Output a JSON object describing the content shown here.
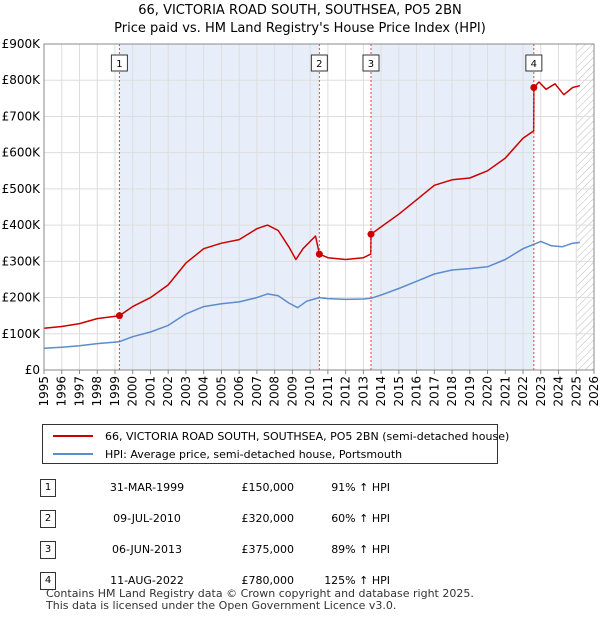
{
  "chart_data": {
    "type": "line",
    "title": "66, VICTORIA ROAD SOUTH, SOUTHSEA, PO5 2BN",
    "subtitle": "Price paid vs. HM Land Registry's House Price Index (HPI)",
    "xlim": [
      1995,
      2026
    ],
    "ylim": [
      0,
      900000
    ],
    "x_ticks": [
      "1995",
      "1996",
      "1997",
      "1998",
      "1999",
      "2000",
      "2001",
      "2002",
      "2003",
      "2004",
      "2005",
      "2006",
      "2007",
      "2008",
      "2009",
      "2010",
      "2011",
      "2012",
      "2013",
      "2014",
      "2015",
      "2016",
      "2017",
      "2018",
      "2019",
      "2020",
      "2021",
      "2022",
      "2023",
      "2024",
      "2025",
      "2026"
    ],
    "y_ticks": [
      {
        "value": 0,
        "label": "£0"
      },
      {
        "value": 100000,
        "label": "£100K"
      },
      {
        "value": 200000,
        "label": "£200K"
      },
      {
        "value": 300000,
        "label": "£300K"
      },
      {
        "value": 400000,
        "label": "£400K"
      },
      {
        "value": 500000,
        "label": "£500K"
      },
      {
        "value": 600000,
        "label": "£600K"
      },
      {
        "value": 700000,
        "label": "£700K"
      },
      {
        "value": 800000,
        "label": "£800K"
      },
      {
        "value": 900000,
        "label": "£900K"
      }
    ],
    "shaded_periods": [
      [
        1999.25,
        2010.52
      ],
      [
        2013.43,
        2022.61
      ]
    ],
    "hatched_from": 2025.0,
    "series": [
      {
        "name": "66, VICTORIA ROAD SOUTH, SOUTHSEA, PO5 2BN (semi-detached house)",
        "color": "#cc0000",
        "points": [
          [
            1995,
            115000
          ],
          [
            1996,
            120000
          ],
          [
            1997,
            128000
          ],
          [
            1998,
            142000
          ],
          [
            1999.25,
            150000
          ],
          [
            2000,
            175000
          ],
          [
            2001,
            200000
          ],
          [
            2002,
            235000
          ],
          [
            2003,
            295000
          ],
          [
            2004,
            335000
          ],
          [
            2005,
            350000
          ],
          [
            2006,
            360000
          ],
          [
            2007,
            390000
          ],
          [
            2007.6,
            400000
          ],
          [
            2008.2,
            385000
          ],
          [
            2008.8,
            340000
          ],
          [
            2009.2,
            305000
          ],
          [
            2009.6,
            335000
          ],
          [
            2010.3,
            370000
          ],
          [
            2010.52,
            320000
          ],
          [
            2011,
            310000
          ],
          [
            2012,
            305000
          ],
          [
            2013,
            310000
          ],
          [
            2013.42,
            320000
          ],
          [
            2013.43,
            375000
          ],
          [
            2014,
            395000
          ],
          [
            2015,
            430000
          ],
          [
            2016,
            470000
          ],
          [
            2017,
            510000
          ],
          [
            2018,
            525000
          ],
          [
            2019,
            530000
          ],
          [
            2020,
            550000
          ],
          [
            2021,
            585000
          ],
          [
            2022,
            640000
          ],
          [
            2022.6,
            660000
          ],
          [
            2022.61,
            780000
          ],
          [
            2022.9,
            795000
          ],
          [
            2023.3,
            775000
          ],
          [
            2023.8,
            790000
          ],
          [
            2024.3,
            760000
          ],
          [
            2024.8,
            780000
          ],
          [
            2025.2,
            785000
          ]
        ]
      },
      {
        "name": "HPI: Average price, semi-detached house, Portsmouth",
        "color": "#5b8ccc",
        "points": [
          [
            1995,
            60000
          ],
          [
            1996,
            63000
          ],
          [
            1997,
            67000
          ],
          [
            1998,
            73000
          ],
          [
            1999.25,
            78000
          ],
          [
            2000,
            92000
          ],
          [
            2001,
            105000
          ],
          [
            2002,
            123000
          ],
          [
            2003,
            155000
          ],
          [
            2004,
            175000
          ],
          [
            2005,
            183000
          ],
          [
            2006,
            188000
          ],
          [
            2007,
            200000
          ],
          [
            2007.6,
            210000
          ],
          [
            2008.2,
            205000
          ],
          [
            2008.8,
            185000
          ],
          [
            2009.3,
            172000
          ],
          [
            2009.8,
            190000
          ],
          [
            2010.52,
            200000
          ],
          [
            2011,
            197000
          ],
          [
            2012,
            195000
          ],
          [
            2013,
            196000
          ],
          [
            2013.43,
            198000
          ],
          [
            2014,
            207000
          ],
          [
            2015,
            225000
          ],
          [
            2016,
            245000
          ],
          [
            2017,
            265000
          ],
          [
            2018,
            276000
          ],
          [
            2019,
            280000
          ],
          [
            2020,
            285000
          ],
          [
            2021,
            305000
          ],
          [
            2022,
            335000
          ],
          [
            2022.61,
            347000
          ],
          [
            2023,
            355000
          ],
          [
            2023.6,
            343000
          ],
          [
            2024.2,
            340000
          ],
          [
            2024.8,
            350000
          ],
          [
            2025.2,
            352000
          ]
        ]
      }
    ],
    "sales": [
      {
        "num": "1",
        "date": "31-MAR-1999",
        "price": "£150,000",
        "hpi": "91% ↑ HPI",
        "x": 1999.25,
        "y": 150000
      },
      {
        "num": "2",
        "date": "09-JUL-2010",
        "price": "£320,000",
        "hpi": "60% ↑ HPI",
        "x": 2010.52,
        "y": 320000
      },
      {
        "num": "3",
        "date": "06-JUN-2013",
        "price": "£375,000",
        "hpi": "89% ↑ HPI",
        "x": 2013.43,
        "y": 375000
      },
      {
        "num": "4",
        "date": "11-AUG-2022",
        "price": "£780,000",
        "hpi": "125% ↑ HPI",
        "x": 2022.61,
        "y": 780000
      }
    ]
  },
  "legend": {
    "property_label": "66, VICTORIA ROAD SOUTH, SOUTHSEA, PO5 2BN (semi-detached house)",
    "hpi_label": "HPI: Average price, semi-detached house, Portsmouth"
  },
  "footer": {
    "line1": "Contains HM Land Registry data © Crown copyright and database right 2025.",
    "line2": "This data is licensed under the Open Government Licence v3.0."
  }
}
